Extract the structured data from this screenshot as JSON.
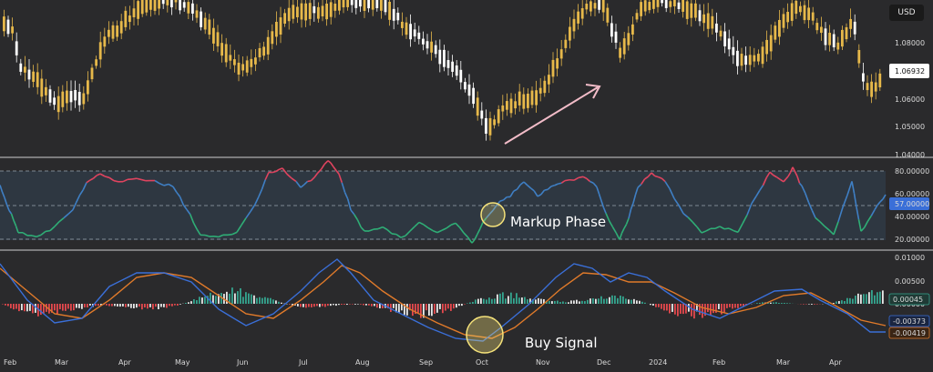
{
  "header": {
    "currency": "USD"
  },
  "chart_data": [
    {
      "type": "candlestick",
      "panel": "price",
      "y_ticks": [
        "1.08000",
        "1.06000",
        "1.05000",
        "1.04000"
      ],
      "current_price": "1.06932",
      "colors": {
        "up": "#e6b84a",
        "down": "#ffffff"
      },
      "arrow_color": "#f2bcc8"
    },
    {
      "type": "line",
      "panel": "oscillator",
      "y_ticks": [
        "80.00000",
        "60.00000",
        "40.00000",
        "20.00000"
      ],
      "reference_lines": [
        80,
        50,
        20
      ],
      "current_value_label": "57.00000",
      "annotation": "Markup Phase",
      "colors": {
        "high": "#e0445f",
        "mid": "#3f7fc4",
        "low": "#2fae76",
        "band": "#2f3b47",
        "circle": "#f5e27a"
      }
    },
    {
      "type": "line",
      "panel": "macd",
      "y_ticks": [
        "0.01000",
        "0.00500",
        "0.00000"
      ],
      "histogram_label": "0.00045",
      "macd_label": "-0.00373",
      "signal_label": "-0.00419",
      "annotation": "Buy Signal",
      "colors": {
        "macd": "#3a6fd8",
        "signal": "#e07a2a",
        "hist_pos": "#35a58f",
        "hist_neg": "#e5484d",
        "hist_light": "#e8e8e8",
        "circle": "#f5e27a"
      }
    }
  ],
  "x_axis": {
    "months": [
      "Feb",
      "Mar",
      "Apr",
      "May",
      "Jun",
      "Jul",
      "Aug",
      "Sep",
      "Oct",
      "Nov",
      "Dec",
      "2024",
      "Feb",
      "Mar",
      "Apr"
    ]
  }
}
